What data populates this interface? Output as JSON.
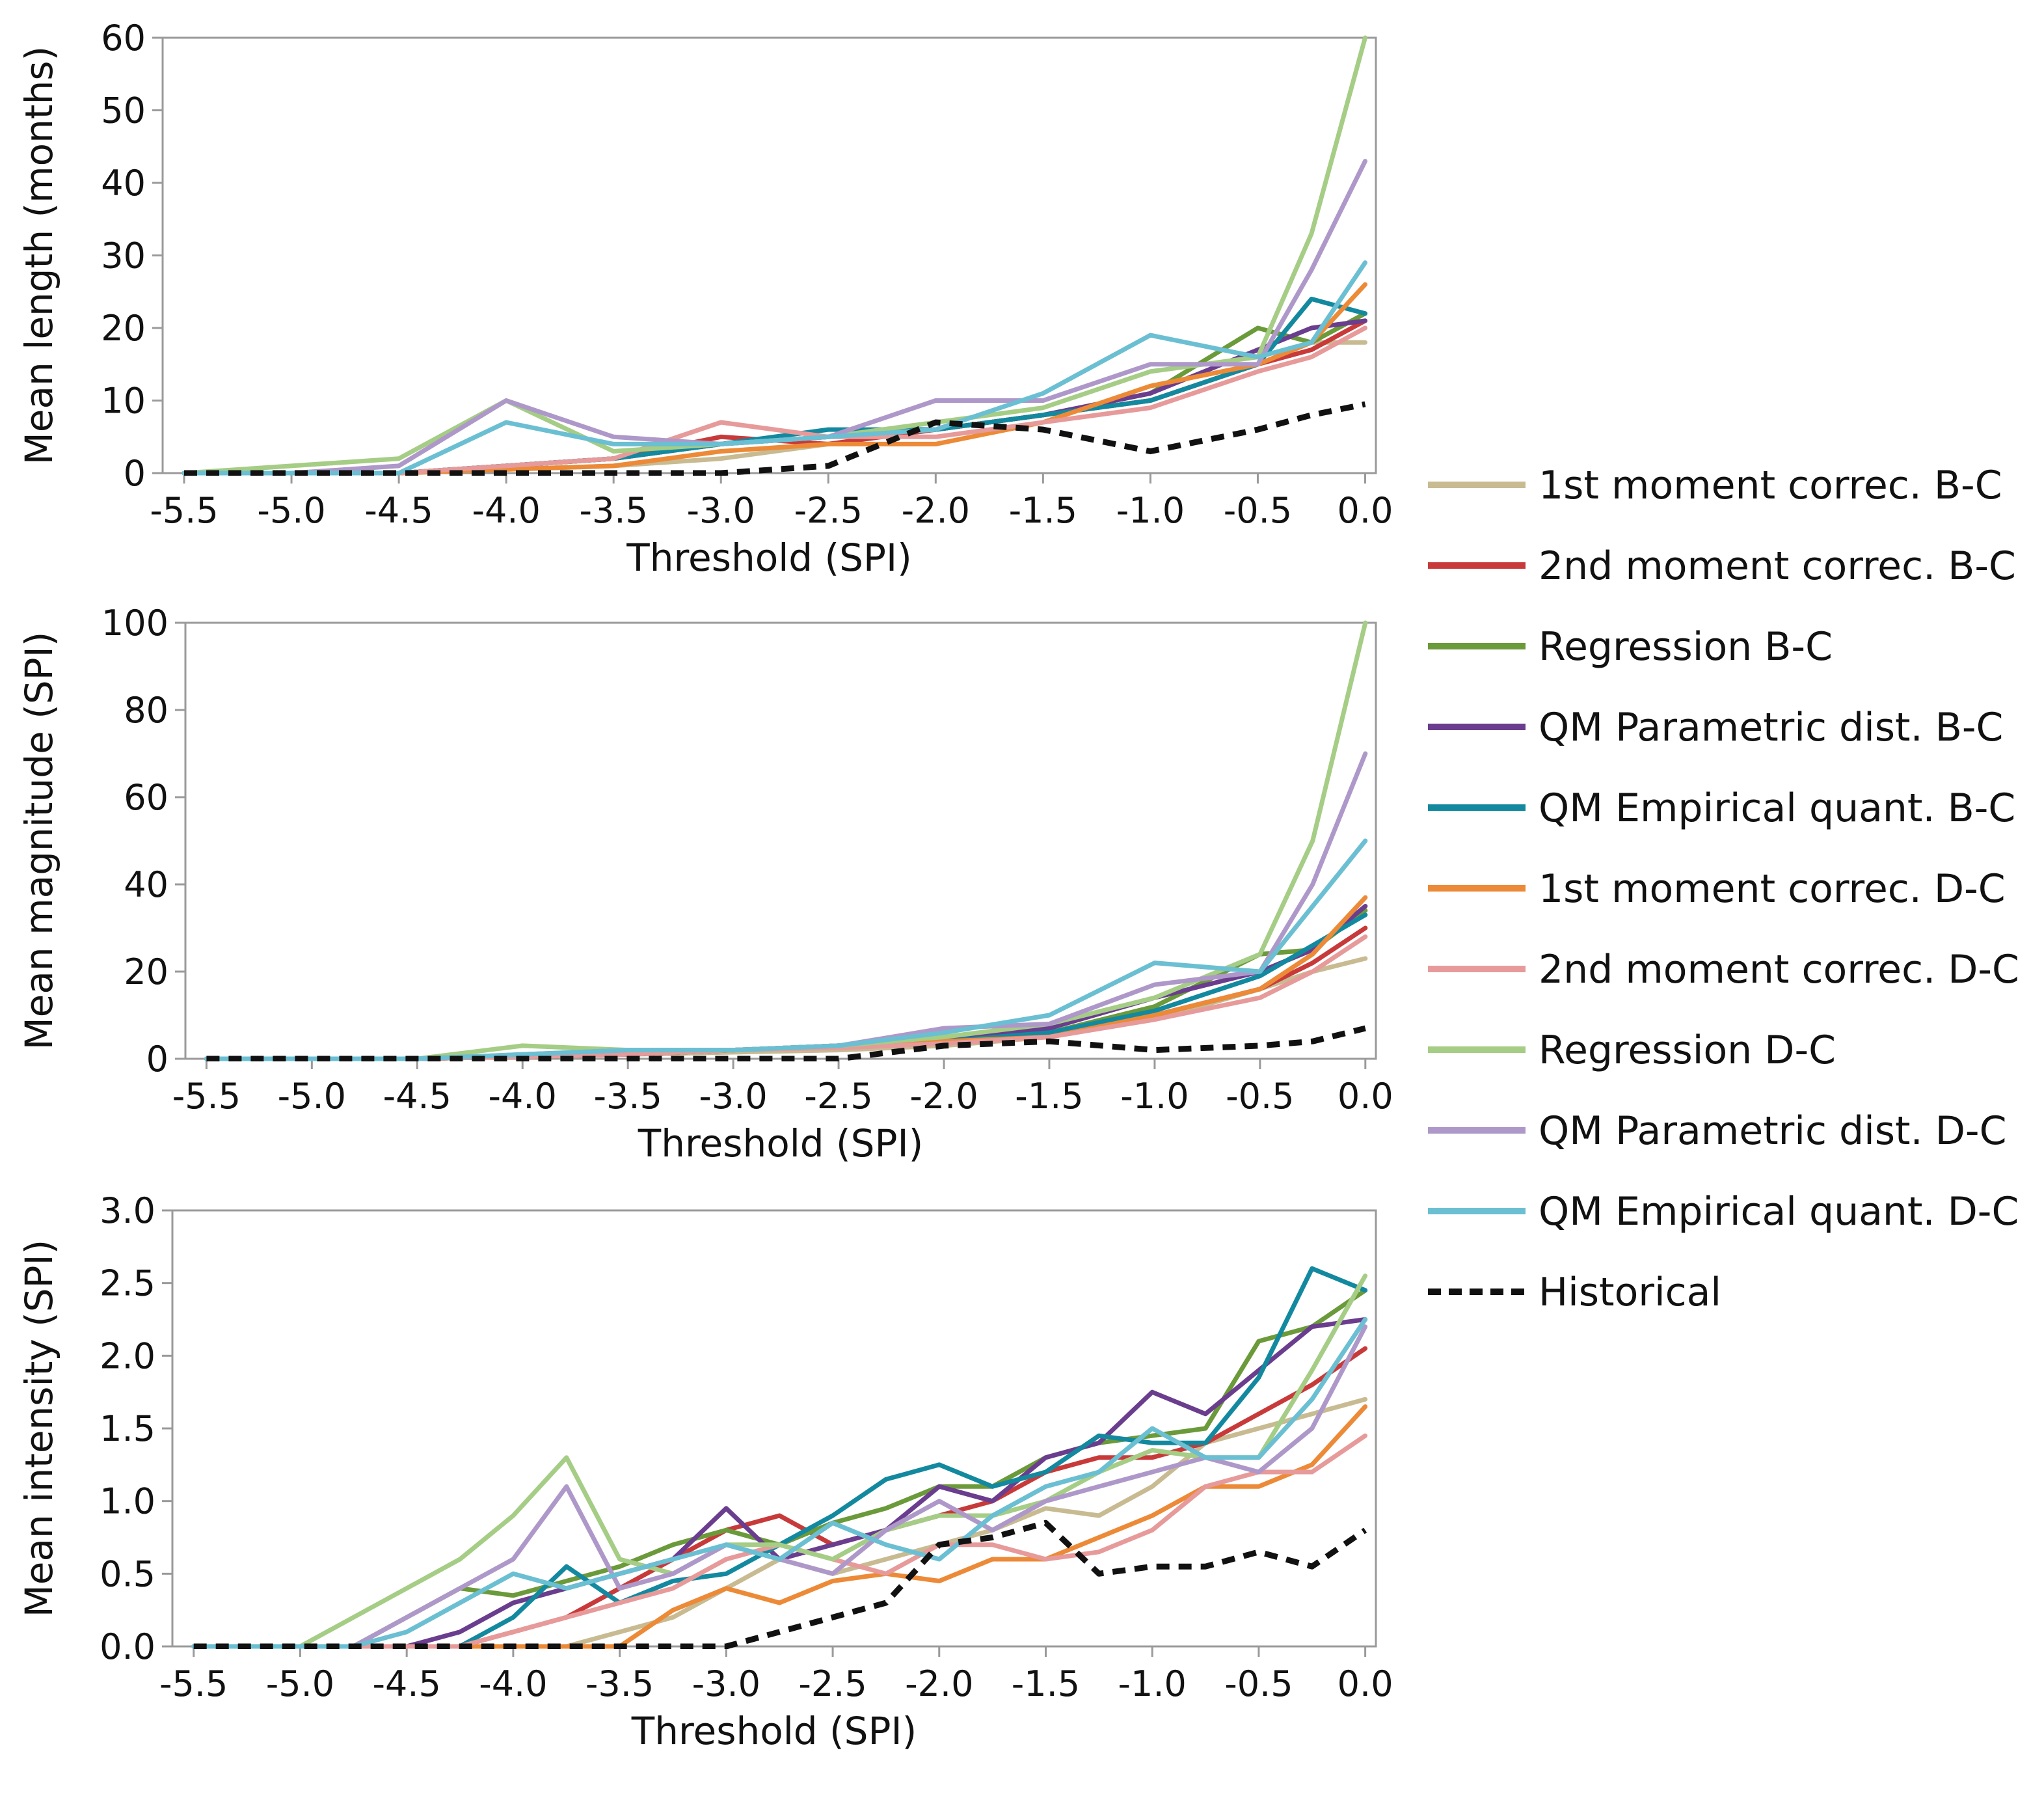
{
  "chart_data": [
    {
      "type": "line",
      "panel": "length",
      "ylabel": "Mean length (months)",
      "xlabel": "Threshold (SPI)",
      "xlim": [
        -5.6,
        0.05
      ],
      "ylim": [
        0,
        60
      ],
      "yticks": [
        0,
        10,
        20,
        30,
        40,
        50,
        60
      ],
      "ytick_labels": [
        "0",
        "10",
        "20",
        "30",
        "40",
        "50",
        "60"
      ],
      "xticks": [
        -5.5,
        -5.0,
        -4.5,
        -4.0,
        -3.5,
        -3.0,
        -2.5,
        -2.0,
        -1.5,
        -1.0,
        -0.5,
        0.0
      ],
      "xtick_labels": [
        "-5.5",
        "-5.0",
        "-4.5",
        "-4.0",
        "-3.5",
        "-3.0",
        "-2.5",
        "-2.0",
        "-1.5",
        "-1.0",
        "-0.5",
        "0.0"
      ],
      "x": [
        -5.5,
        -5.0,
        -4.5,
        -4.0,
        -3.5,
        -3.0,
        -2.5,
        -2.0,
        -1.5,
        -1.0,
        -0.5,
        -0.25,
        0.0
      ],
      "series": [
        {
          "key": "s1",
          "values": [
            0,
            0,
            0,
            0.5,
            1,
            2,
            4,
            6,
            8,
            10,
            15,
            18,
            18
          ]
        },
        {
          "key": "s2",
          "values": [
            0,
            0,
            0,
            1,
            2,
            5,
            4,
            6,
            8,
            10,
            15,
            17,
            21
          ]
        },
        {
          "key": "s3",
          "values": [
            0,
            0,
            0,
            1,
            2,
            4,
            5,
            6,
            8,
            11,
            20,
            18,
            22
          ]
        },
        {
          "key": "s4",
          "values": [
            0,
            0,
            0,
            1,
            2,
            4,
            5,
            6,
            8,
            11,
            17,
            20,
            21
          ]
        },
        {
          "key": "s5",
          "values": [
            0,
            0,
            0,
            1,
            2,
            4,
            6,
            6,
            8,
            10,
            15,
            24,
            22
          ]
        },
        {
          "key": "s6",
          "values": [
            0,
            0,
            0,
            0.5,
            1,
            3,
            4,
            4,
            7,
            12,
            15,
            18,
            26
          ]
        },
        {
          "key": "s7",
          "values": [
            0,
            0,
            0,
            1,
            2,
            7,
            5,
            5,
            7,
            9,
            14,
            16,
            20
          ]
        },
        {
          "key": "s8",
          "values": [
            0,
            1,
            2,
            10,
            3,
            4,
            5,
            7,
            9,
            14,
            16,
            33,
            60
          ]
        },
        {
          "key": "s9",
          "values": [
            0,
            0,
            1,
            10,
            5,
            4,
            5,
            10,
            10,
            15,
            15,
            28,
            43
          ]
        },
        {
          "key": "s10",
          "values": [
            0,
            0,
            0,
            7,
            4,
            4,
            5,
            6,
            11,
            19,
            16,
            18,
            29
          ]
        },
        {
          "key": "hist",
          "values": [
            0,
            0,
            0,
            0,
            0,
            0,
            1,
            7,
            6,
            3,
            6,
            8,
            9.5
          ]
        }
      ]
    },
    {
      "type": "line",
      "panel": "magnitude",
      "ylabel": "Mean magnitude (SPI)",
      "xlabel": "Threshold (SPI)",
      "xlim": [
        -5.6,
        0.05
      ],
      "ylim": [
        0,
        100
      ],
      "yticks": [
        0,
        20,
        40,
        60,
        80,
        100
      ],
      "ytick_labels": [
        "0",
        "20",
        "40",
        "60",
        "80",
        "100"
      ],
      "xticks": [
        -5.5,
        -5.0,
        -4.5,
        -4.0,
        -3.5,
        -3.0,
        -2.5,
        -2.0,
        -1.5,
        -1.0,
        -0.5,
        0.0
      ],
      "xtick_labels": [
        "-5.5",
        "-5.0",
        "-4.5",
        "-4.0",
        "-3.5",
        "-3.0",
        "-2.5",
        "-2.0",
        "-1.5",
        "-1.0",
        "-0.5",
        "0.0"
      ],
      "x": [
        -5.5,
        -5.0,
        -4.5,
        -4.0,
        -3.5,
        -3.0,
        -2.5,
        -2.0,
        -1.5,
        -1.0,
        -0.5,
        -0.25,
        0.0
      ],
      "series": [
        {
          "key": "s1",
          "values": [
            0,
            0,
            0,
            0.5,
            1,
            1.5,
            2,
            3,
            5,
            9,
            16,
            20,
            23
          ]
        },
        {
          "key": "s2",
          "values": [
            0,
            0,
            0,
            0.5,
            1,
            2,
            3,
            4,
            6,
            10,
            16,
            22,
            30
          ]
        },
        {
          "key": "s3",
          "values": [
            0,
            0,
            0,
            0.5,
            1,
            2,
            3,
            4,
            6,
            12,
            24,
            25,
            34
          ]
        },
        {
          "key": "s4",
          "values": [
            0,
            0,
            0,
            0.5,
            1,
            2,
            3,
            4,
            7,
            14,
            20,
            25,
            35
          ]
        },
        {
          "key": "s5",
          "values": [
            0,
            0,
            0,
            0.5,
            1,
            2,
            3,
            4,
            6,
            11,
            19,
            26,
            33
          ]
        },
        {
          "key": "s6",
          "values": [
            0,
            0,
            0,
            0.5,
            1,
            2,
            3,
            4,
            5,
            10,
            16,
            24,
            37
          ]
        },
        {
          "key": "s7",
          "values": [
            0,
            0,
            0,
            0.5,
            1,
            2,
            2.5,
            3.5,
            5,
            9,
            14,
            20,
            28
          ]
        },
        {
          "key": "s8",
          "values": [
            0,
            0,
            0,
            3,
            2,
            2,
            3,
            5,
            8,
            14,
            24,
            50,
            100
          ]
        },
        {
          "key": "s9",
          "values": [
            0,
            0,
            0,
            1,
            2,
            2,
            3,
            7,
            8,
            17,
            20,
            40,
            70
          ]
        },
        {
          "key": "s10",
          "values": [
            0,
            0,
            0,
            1,
            2,
            2,
            3,
            6,
            10,
            22,
            20,
            35,
            50
          ]
        },
        {
          "key": "hist",
          "values": [
            0,
            0,
            0,
            0,
            0,
            0,
            0,
            3,
            4,
            2,
            3,
            4,
            7
          ]
        }
      ]
    },
    {
      "type": "line",
      "panel": "intensity",
      "ylabel": "Mean intensity (SPI)",
      "xlabel": "Threshold (SPI)",
      "xlim": [
        -5.6,
        0.05
      ],
      "ylim": [
        0,
        3.0
      ],
      "yticks": [
        0,
        0.5,
        1.0,
        1.5,
        2.0,
        2.5,
        3.0
      ],
      "ytick_labels": [
        "0.0",
        "0.5",
        "1.0",
        "1.5",
        "2.0",
        "2.5",
        "3.0"
      ],
      "xticks": [
        -5.5,
        -5.0,
        -4.5,
        -4.0,
        -3.5,
        -3.0,
        -2.5,
        -2.0,
        -1.5,
        -1.0,
        -0.5,
        0.0
      ],
      "xtick_labels": [
        "-5.5",
        "-5.0",
        "-4.5",
        "-4.0",
        "-3.5",
        "-3.0",
        "-2.5",
        "-2.0",
        "-1.5",
        "-1.0",
        "-0.5",
        "0.0"
      ],
      "x": [
        -5.5,
        -5.0,
        -4.75,
        -4.5,
        -4.25,
        -4.0,
        -3.75,
        -3.5,
        -3.25,
        -3.0,
        -2.75,
        -2.5,
        -2.25,
        -2.0,
        -1.75,
        -1.5,
        -1.25,
        -1.0,
        -0.75,
        -0.5,
        -0.25,
        0.0
      ],
      "series": [
        {
          "key": "s1",
          "values": [
            0,
            0,
            0,
            0,
            0,
            0,
            0,
            0.1,
            0.2,
            0.4,
            0.6,
            0.5,
            0.6,
            0.7,
            0.8,
            0.95,
            0.9,
            1.1,
            1.4,
            1.5,
            1.6,
            1.7
          ]
        },
        {
          "key": "s2",
          "values": [
            0,
            0,
            0,
            0,
            0,
            0.1,
            0.2,
            0.4,
            0.6,
            0.8,
            0.9,
            0.7,
            0.8,
            0.9,
            1.0,
            1.2,
            1.3,
            1.3,
            1.4,
            1.6,
            1.8,
            2.05
          ]
        },
        {
          "key": "s3",
          "values": [
            0,
            0,
            0,
            0.2,
            0.4,
            0.35,
            0.45,
            0.55,
            0.7,
            0.8,
            0.7,
            0.85,
            0.95,
            1.1,
            1.1,
            1.3,
            1.4,
            1.45,
            1.5,
            2.1,
            2.2,
            2.45
          ]
        },
        {
          "key": "s4",
          "values": [
            0,
            0,
            0,
            0,
            0.1,
            0.3,
            0.4,
            0.5,
            0.6,
            0.95,
            0.6,
            0.7,
            0.8,
            1.1,
            1.0,
            1.3,
            1.4,
            1.75,
            1.6,
            1.9,
            2.2,
            2.25
          ]
        },
        {
          "key": "s5",
          "values": [
            0,
            0,
            0,
            0,
            0,
            0.2,
            0.55,
            0.3,
            0.45,
            0.5,
            0.7,
            0.9,
            1.15,
            1.25,
            1.1,
            1.2,
            1.45,
            1.4,
            1.4,
            1.85,
            2.6,
            2.45
          ]
        },
        {
          "key": "s6",
          "values": [
            0,
            0,
            0,
            0,
            0,
            0,
            0,
            0,
            0.25,
            0.4,
            0.3,
            0.45,
            0.5,
            0.45,
            0.6,
            0.6,
            0.75,
            0.9,
            1.1,
            1.1,
            1.25,
            1.65
          ]
        },
        {
          "key": "s7",
          "values": [
            0,
            0,
            0,
            0,
            0,
            0.1,
            0.2,
            0.3,
            0.4,
            0.6,
            0.7,
            0.6,
            0.5,
            0.7,
            0.7,
            0.6,
            0.65,
            0.8,
            1.1,
            1.2,
            1.2,
            1.45
          ]
        },
        {
          "key": "s8",
          "values": [
            0,
            0,
            0.2,
            0.4,
            0.6,
            0.9,
            1.3,
            0.6,
            0.5,
            0.7,
            0.7,
            0.6,
            0.8,
            0.9,
            0.9,
            1.0,
            1.2,
            1.35,
            1.3,
            1.3,
            1.9,
            2.55
          ]
        },
        {
          "key": "s9",
          "values": [
            0,
            0,
            0,
            0.2,
            0.4,
            0.6,
            1.1,
            0.4,
            0.5,
            0.7,
            0.6,
            0.5,
            0.8,
            1.0,
            0.8,
            1.0,
            1.1,
            1.2,
            1.3,
            1.2,
            1.5,
            2.2
          ]
        },
        {
          "key": "s10",
          "values": [
            0,
            0,
            0,
            0.1,
            0.3,
            0.5,
            0.4,
            0.5,
            0.6,
            0.7,
            0.6,
            0.85,
            0.7,
            0.6,
            0.9,
            1.1,
            1.2,
            1.5,
            1.3,
            1.3,
            1.7,
            2.25
          ]
        },
        {
          "key": "hist",
          "values": [
            0,
            0,
            0,
            0,
            0,
            0,
            0,
            0,
            0,
            0,
            0.1,
            0.2,
            0.3,
            0.7,
            0.75,
            0.85,
            0.5,
            0.55,
            0.55,
            0.65,
            0.55,
            0.8
          ]
        }
      ]
    }
  ],
  "legend": [
    {
      "key": "s1",
      "label": "1st moment correc. B-C",
      "color": "#c8bb92",
      "dashed": false
    },
    {
      "key": "s2",
      "label": "2nd moment correc. B-C",
      "color": "#c83a3a",
      "dashed": false
    },
    {
      "key": "s3",
      "label": "Regression B-C",
      "color": "#6b9a3a",
      "dashed": false
    },
    {
      "key": "s4",
      "label": "QM Parametric dist. B-C",
      "color": "#6a3d8e",
      "dashed": false
    },
    {
      "key": "s5",
      "label": "QM Empirical quant. B-C",
      "color": "#13899f",
      "dashed": false
    },
    {
      "key": "s6",
      "label": "1st moment correc. D-C",
      "color": "#ec8a37",
      "dashed": false
    },
    {
      "key": "s7",
      "label": "2nd moment correc. D-C",
      "color": "#e79a9a",
      "dashed": false
    },
    {
      "key": "s8",
      "label": "Regression D-C",
      "color": "#a5cd85",
      "dashed": false
    },
    {
      "key": "s9",
      "label": "QM Parametric dist. D-C",
      "color": "#ae98c9",
      "dashed": false
    },
    {
      "key": "s10",
      "label": "QM Empirical quant. D-C",
      "color": "#6bbfd2",
      "dashed": false
    },
    {
      "key": "hist",
      "label": "Historical",
      "color": "#111111",
      "dashed": true
    }
  ]
}
